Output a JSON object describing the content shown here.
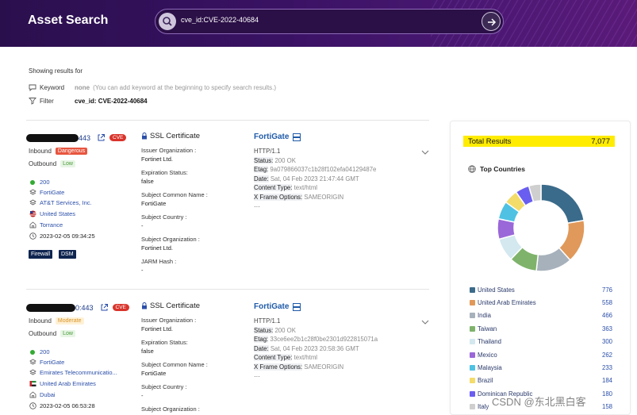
{
  "header": {
    "title": "Asset Search",
    "query": "cve_id:CVE-2022-40684"
  },
  "summary": {
    "showing": "Showing results for",
    "keyword_label": "Keyword",
    "keyword_value": "none",
    "keyword_hint": "(You can add keyword at the beginning to specify search results.)",
    "filter_label": "Filter",
    "filter_value": "cve_id: CVE-2022-40684"
  },
  "results": [
    {
      "ip_suffix": "443",
      "cve_badge": "CVE",
      "inbound_label": "Inbound",
      "inbound_value": "Dangerous",
      "outbound_label": "Outbound",
      "outbound_value": "Low",
      "status": "200",
      "product": "FortiGate",
      "isp": "AT&T Services, Inc.",
      "country": "United States",
      "city": "Torrance",
      "time": "2023-02-05 09:34:25",
      "tags": [
        "Firewall",
        "DSM"
      ],
      "ssl": {
        "title": "SSL Certificate",
        "issuer_org_label": "Issuer Organization :",
        "issuer_org": "Fortinet Ltd.",
        "expiration_label": "Expiration Status:",
        "expiration": "false",
        "subject_cn_label": "Subject Common Name :",
        "subject_cn": "FortiGate",
        "subject_country_label": "Subject Country :",
        "subject_country": "-",
        "subject_org_label": "Subject Organization :",
        "subject_org": "Fortinet Ltd.",
        "jarm_label": "JARM Hash :",
        "jarm": "-"
      },
      "http": {
        "product": "FortiGate",
        "version": "HTTP/1.1",
        "status_k": "Status:",
        "status_v": "200 OK",
        "etag_k": "Etag:",
        "etag_v": "9a079866037c1b28f102efa04129487e",
        "date_k": "Date:",
        "date_v": "Sat, 04 Feb 2023 21:47:44 GMT",
        "ctype_k": "Content Type:",
        "ctype_v": "text/html",
        "xfo_k": "X Frame Options:",
        "xfo_v": "SAMEORIGIN",
        "more": "···"
      }
    },
    {
      "ip_suffix": "0:443",
      "cve_badge": "CVE",
      "inbound_label": "Inbound",
      "inbound_value": "Moderate",
      "outbound_label": "Outbound",
      "outbound_value": "Low",
      "status": "200",
      "product": "FortiGate",
      "isp": "Emirates Telecommunicatio...",
      "country": "United Arab Emirates",
      "city": "Dubai",
      "time": "2023-02-05 06:53:28",
      "ssl": {
        "title": "SSL Certificate",
        "issuer_org_label": "Issuer Organization :",
        "issuer_org": "Fortinet Ltd.",
        "expiration_label": "Expiration Status:",
        "expiration": "false",
        "subject_cn_label": "Subject Common Name :",
        "subject_cn": "FortiGate",
        "subject_country_label": "Subject Country :",
        "subject_country": "-",
        "subject_org_label": "Subject Organization :"
      },
      "http": {
        "product": "FortiGate",
        "version": "HTTP/1.1",
        "status_k": "Status:",
        "status_v": "200 OK",
        "etag_k": "Etag:",
        "etag_v": "33ce6ee2b1c28f0be2301d922815071a",
        "date_k": "Date:",
        "date_v": "Sat, 04 Feb 2023 20:58:36 GMT",
        "ctype_k": "Content Type:",
        "ctype_v": "text/html",
        "xfo_k": "X Frame Options:",
        "xfo_v": "SAMEORIGIN",
        "more": "···"
      }
    }
  ],
  "stats": {
    "total_label": "Total Results",
    "total_value": "7,077",
    "top_countries_title": "Top Countries",
    "countries": [
      {
        "name": "United States",
        "count": "776",
        "value": 776,
        "color": "#3b6b8a"
      },
      {
        "name": "United Arab Emirates",
        "count": "558",
        "value": 558,
        "color": "#e0995a"
      },
      {
        "name": "India",
        "count": "466",
        "value": 466,
        "color": "#a7b1bb"
      },
      {
        "name": "Taiwan",
        "count": "363",
        "value": 363,
        "color": "#7fb36b"
      },
      {
        "name": "Thailand",
        "count": "300",
        "value": 300,
        "color": "#d3e8ef"
      },
      {
        "name": "Mexico",
        "count": "262",
        "value": 262,
        "color": "#9a68d8"
      },
      {
        "name": "Malaysia",
        "count": "233",
        "value": 233,
        "color": "#4fc2e3"
      },
      {
        "name": "Brazil",
        "count": "184",
        "value": 184,
        "color": "#f3dc6a"
      },
      {
        "name": "Dominican Republic",
        "count": "180",
        "value": 180,
        "color": "#6a5ef0"
      },
      {
        "name": "Italy",
        "count": "158",
        "value": 158,
        "color": "#cfcfcf"
      }
    ]
  },
  "watermark": "CSDN @东北黑白客"
}
